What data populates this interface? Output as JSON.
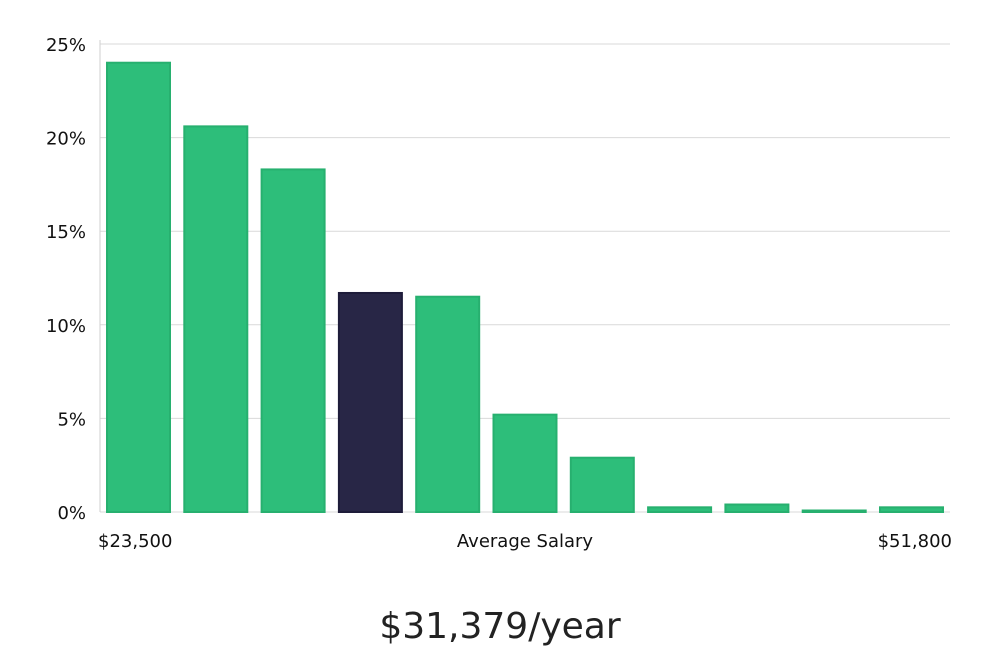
{
  "chart_data": {
    "type": "bar",
    "title": "",
    "xlabel": "Average Salary",
    "ylabel": "",
    "x_range_labels": {
      "min": "$23,500",
      "max": "$51,800"
    },
    "ylim": [
      0,
      25
    ],
    "yticks": [
      0,
      5,
      10,
      15,
      20,
      25
    ],
    "ytick_labels": [
      "0%",
      "5%",
      "10%",
      "15%",
      "20%",
      "25%"
    ],
    "values": [
      24.0,
      20.6,
      18.3,
      11.7,
      11.5,
      5.2,
      2.9,
      0.25,
      0.4,
      0.05,
      0.25
    ],
    "highlight_index": 3,
    "colors": {
      "bar": "#2dbe7a",
      "bar_border": "#27b06f",
      "highlight": "#282646",
      "highlight_border": "#1e1c3a",
      "grid": "#d9d9d9"
    }
  },
  "summary": {
    "average_salary": "$31,379/year"
  }
}
